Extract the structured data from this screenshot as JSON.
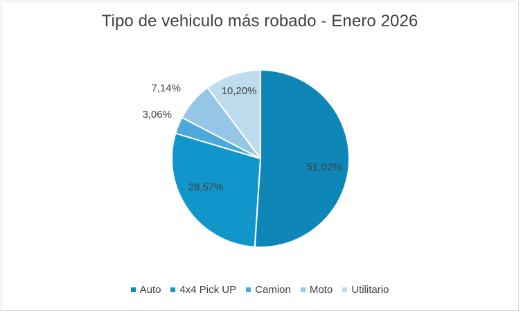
{
  "chart_data": {
    "type": "pie",
    "title": "Tipo de vehiculo más robado - Enero 2026",
    "categories": [
      "Auto",
      "4x4 Pick UP",
      "Camion",
      "Moto",
      "Utilitario"
    ],
    "values": [
      51.02,
      28.57,
      3.06,
      7.14,
      10.2
    ],
    "data_labels": [
      "51,02%",
      "28,57%",
      "3,06%",
      "7,14%",
      "10,20%"
    ],
    "colors": [
      "#0e86b8",
      "#1196cc",
      "#4ca9db",
      "#95c6e6",
      "#bfdbee"
    ],
    "legend_position": "bottom",
    "start_angle_deg": 0,
    "direction": "clockwise"
  }
}
